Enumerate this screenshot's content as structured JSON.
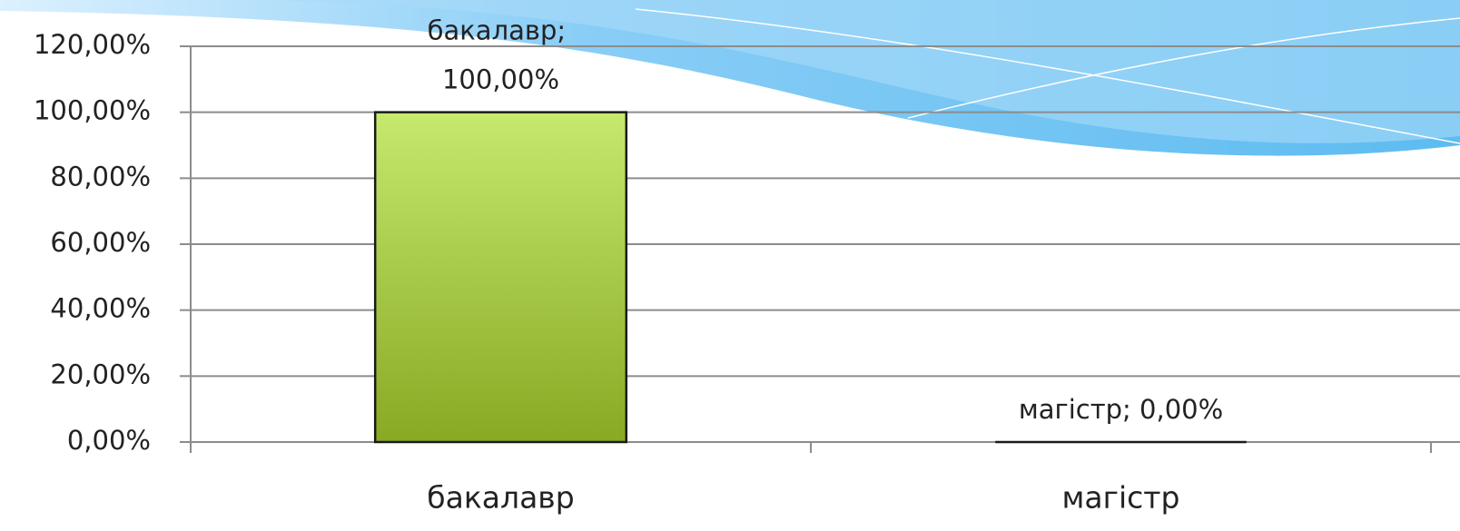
{
  "chart_data": {
    "type": "bar",
    "categories": [
      "бакалавр",
      "магістр"
    ],
    "values": [
      100,
      0
    ],
    "value_labels": [
      "бакалавр; 100,00%",
      "магістр; 0,00%"
    ],
    "color": "#a6c83f",
    "ylim": [
      0,
      120
    ],
    "yticks": [
      {
        "value": 0,
        "label": "0,00%"
      },
      {
        "value": 20,
        "label": "20,00%"
      },
      {
        "value": 40,
        "label": "40,00%"
      },
      {
        "value": 60,
        "label": "60,00%"
      },
      {
        "value": 80,
        "label": "80,00%"
      },
      {
        "value": 100,
        "label": "100,00%"
      },
      {
        "value": 120,
        "label": "120,00%"
      }
    ],
    "grid": true
  }
}
